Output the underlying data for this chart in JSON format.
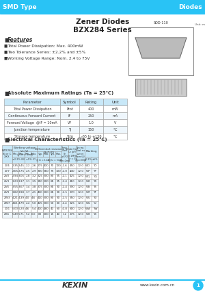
{
  "title_bar_text_left": "SMD Type",
  "title_bar_text_right": "Diodes",
  "title_bar_color": "#29C3F5",
  "title1": "Zener Diodes",
  "title2": "BZX284 Series",
  "features_title": "Features",
  "features": [
    "Total Power Dissipation: Max. 400mW",
    "Two Tolerance Series: ±2.2% and ±5%",
    "Working Voltage Range: Nom. 2.4 to 75V"
  ],
  "abs_max_title": "Absolute Maximum Ratings (Ta = 25℃)",
  "abs_max_headers": [
    "Parameter",
    "Symbol",
    "Rating",
    "Unit"
  ],
  "abs_max_rows": [
    [
      "Total Power Dissipation",
      "Ptot",
      "400",
      "mW"
    ],
    [
      "Continuous Forward Current",
      "IF",
      "250",
      "mA"
    ],
    [
      "Forward Voltage  @IF = 10mA",
      "VF",
      "1.0",
      "V"
    ],
    [
      "Junction temperature",
      "Tj",
      "150",
      "℃"
    ],
    [
      "Storage temperature",
      "Tstg",
      "-65 to +150",
      "℃"
    ]
  ],
  "elec_title": "Electrical Characteristics (Ta = 25℃)",
  "elec_rows": [
    [
      "ZY4",
      "2.35",
      "2.45",
      "2.2",
      "2.6",
      "275",
      "400",
      "70",
      "100",
      "-1.6",
      "450",
      "12.0",
      "WO",
      "YO"
    ],
    [
      "ZY7",
      "2.65",
      "2.75",
      "2.5",
      "2.9",
      "300",
      "650",
      "75",
      "100",
      "-2.0",
      "440",
      "12.0",
      "WP",
      "YP"
    ],
    [
      "ZV0",
      "2.94",
      "3.06",
      "2.8",
      "3.2",
      "325",
      "500",
      "80",
      "95",
      "-2.1",
      "425",
      "12.0",
      "WQ",
      "YQ"
    ],
    [
      "ZV3",
      "3.23",
      "3.37",
      "3.1",
      "3.5",
      "350",
      "500",
      "85",
      "95",
      "-2.4",
      "410",
      "12.0",
      "WR",
      "YR"
    ],
    [
      "ZV6",
      "3.55",
      "3.67",
      "3.4",
      "3.8",
      "375",
      "500",
      "85",
      "90",
      "-2.4",
      "390",
      "12.0",
      "WS",
      "YS"
    ],
    [
      "ZV9",
      "3.82",
      "3.98",
      "3.7",
      "4.1",
      "400",
      "500",
      "85",
      "90",
      "-2.5",
      "370",
      "12.0",
      "WT",
      "YT"
    ],
    [
      "ZW3",
      "4.21",
      "4.39",
      "4.0",
      "4.6",
      "410",
      "500",
      "80",
      "90",
      "-2.5",
      "350",
      "12.0",
      "WU",
      "YU"
    ],
    [
      "ZW7",
      "4.61",
      "4.79",
      "4.4",
      "5.0",
      "425",
      "500",
      "50",
      "80",
      "-1.4",
      "325",
      "12.0",
      "WV",
      "YV"
    ],
    [
      "ZX1",
      "5.00",
      "5.20",
      "4.6",
      "5.4",
      "400",
      "480",
      "40",
      "60",
      "-0.8",
      "300",
      "12.0",
      "WW",
      "YW"
    ],
    [
      "ZX6",
      "5.49",
      "5.71",
      "5.2",
      "6.0",
      "80",
      "600",
      "15",
      "40",
      "1.2",
      "275",
      "12.0",
      "WX",
      "YX"
    ]
  ],
  "footer_logo": "KEXIN",
  "footer_url": "www.kexin.com.cn",
  "bg_color": "#FFFFFF",
  "header_row_color": "#C8E8F8",
  "table_line_color": "#999999"
}
